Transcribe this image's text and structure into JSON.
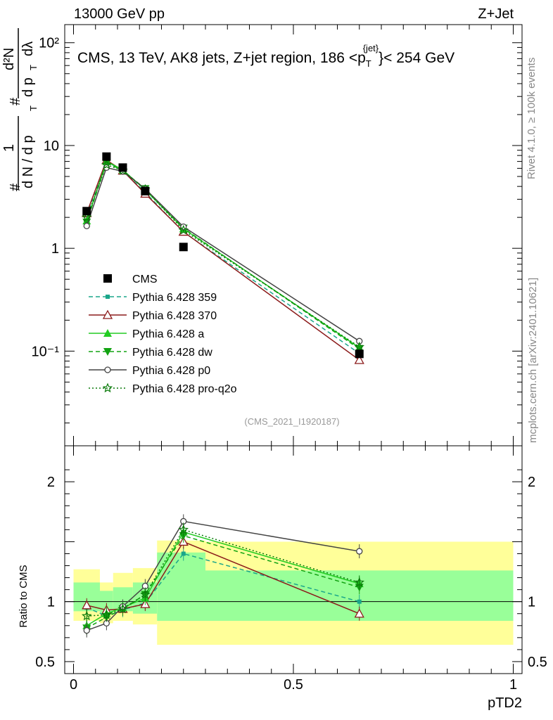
{
  "header": {
    "left": "13000 GeV pp",
    "right": "Z+Jet"
  },
  "side_labels": {
    "rivet": "Rivet 4.1.0, ≥ 100k events",
    "mcplots": "mcplots.cern.ch [arXiv:2401.10621]"
  },
  "chart_data": [
    {
      "name": "main",
      "type": "line",
      "yscale": "log",
      "title": "CMS, 13 TeV, AK8 jets, Z+jet region, 186 <p_T^{jet}< 254 GeV",
      "title_parts": {
        "a": "CMS, 13 TeV, AK8 jets, Z+jet region, 186 <p",
        "sub": "T",
        "sup": "{jet}",
        "b": "}< 254 GeV"
      },
      "ylabel_parts": [
        "#",
        "1",
        "d N / d p",
        "T",
        "#",
        "d p",
        "T",
        "dλ",
        "d²N"
      ],
      "xlim": [
        -0.02,
        1.02
      ],
      "ylim": [
        0.012,
        150
      ],
      "y_ticks": [
        {
          "value": 0.1,
          "label": "10⁻¹"
        },
        {
          "value": 1,
          "label": "1"
        },
        {
          "value": 10,
          "label": "10"
        },
        {
          "value": 100,
          "label": "10²"
        }
      ],
      "watermark": "(CMS_2021_I1920187)",
      "x": [
        0.03,
        0.075,
        0.112,
        0.163,
        0.25,
        0.65
      ],
      "series": [
        {
          "name": "CMS",
          "color": "#000000",
          "marker": "square",
          "dash": "none",
          "values": [
            2.3,
            7.8,
            6.1,
            3.6,
            1.03,
            0.094
          ]
        },
        {
          "name": "Pythia 6.428 359",
          "color": "#1aa68a",
          "marker": "smallsquare",
          "dash": "dashed",
          "values": [
            2.1,
            7.0,
            5.7,
            3.5,
            1.44,
            0.095
          ]
        },
        {
          "name": "Pythia 6.428 370",
          "color": "#8b1a1a",
          "marker": "opentriangle",
          "dash": "solid",
          "values": [
            2.2,
            7.2,
            5.7,
            3.4,
            1.45,
            0.082
          ]
        },
        {
          "name": "Pythia 6.428 a",
          "color": "#22cc22",
          "marker": "triangle",
          "dash": "solid",
          "values": [
            1.85,
            7.0,
            5.8,
            3.7,
            1.55,
            0.108
          ]
        },
        {
          "name": "Pythia 6.428 dw",
          "color": "#12a312",
          "marker": "invtriangle",
          "dash": "dashed",
          "values": [
            1.8,
            6.8,
            5.7,
            3.8,
            1.57,
            0.105
          ]
        },
        {
          "name": "Pythia 6.428 p0",
          "color": "#444444",
          "marker": "opencircle",
          "dash": "solid",
          "values": [
            1.65,
            6.1,
            5.6,
            3.8,
            1.62,
            0.125
          ]
        },
        {
          "name": "Pythia 6.428 pro-q2o",
          "color": "#0a7a0a",
          "marker": "star",
          "dash": "dotted",
          "values": [
            2.0,
            6.5,
            5.7,
            3.75,
            1.5,
            0.11
          ]
        }
      ]
    },
    {
      "name": "ratio",
      "type": "line",
      "ylabel": "Ratio to CMS",
      "xlabel": "pTD2",
      "xlim": [
        -0.02,
        1.02
      ],
      "ylim": [
        0.4,
        2.3
      ],
      "y_ticks": [
        {
          "value": 0.5,
          "label": "0.5"
        },
        {
          "value": 1,
          "label": "1"
        },
        {
          "value": 2,
          "label": "2"
        }
      ],
      "x_ticks": [
        {
          "value": 0,
          "label": "0"
        },
        {
          "value": 0.5,
          "label": "0.5"
        },
        {
          "value": 1,
          "label": "1"
        }
      ],
      "bands": [
        {
          "x0": 0.0,
          "x1": 0.06,
          "inner": [
            0.92,
            1.16
          ],
          "outer": [
            0.84,
            1.27
          ]
        },
        {
          "x0": 0.06,
          "x1": 0.09,
          "inner": [
            0.9,
            1.09
          ],
          "outer": [
            0.82,
            1.16
          ]
        },
        {
          "x0": 0.09,
          "x1": 0.135,
          "inner": [
            0.92,
            1.12
          ],
          "outer": [
            0.84,
            1.24
          ]
        },
        {
          "x0": 0.135,
          "x1": 0.19,
          "inner": [
            0.9,
            1.16
          ],
          "outer": [
            0.81,
            1.28
          ]
        },
        {
          "x0": 0.19,
          "x1": 0.3,
          "inner": [
            0.84,
            1.41
          ],
          "outer": [
            0.64,
            1.51
          ]
        },
        {
          "x0": 0.3,
          "x1": 1.0,
          "inner": [
            0.84,
            1.26
          ],
          "outer": [
            0.64,
            1.5
          ]
        }
      ],
      "band_colors": {
        "inner": "#99ff99",
        "outer": "#ffff99"
      },
      "x": [
        0.03,
        0.075,
        0.112,
        0.163,
        0.25,
        0.65
      ],
      "series": [
        {
          "name": "Pythia 6.428 359",
          "color": "#1aa68a",
          "marker": "smallsquare",
          "dash": "dashed",
          "values": [
            0.95,
            0.88,
            0.93,
            0.99,
            1.4,
            1.0
          ]
        },
        {
          "name": "Pythia 6.428 370",
          "color": "#8b1a1a",
          "marker": "opentriangle",
          "dash": "solid",
          "values": [
            0.97,
            0.93,
            0.94,
            0.98,
            1.5,
            0.9
          ]
        },
        {
          "name": "Pythia 6.428 a",
          "color": "#22cc22",
          "marker": "triangle",
          "dash": "solid",
          "values": [
            0.8,
            0.9,
            0.95,
            1.03,
            1.58,
            1.15
          ]
        },
        {
          "name": "Pythia 6.428 dw",
          "color": "#12a312",
          "marker": "invtriangle",
          "dash": "dashed",
          "values": [
            0.78,
            0.87,
            0.94,
            1.06,
            1.55,
            1.12
          ]
        },
        {
          "name": "Pythia 6.428 p0",
          "color": "#444444",
          "marker": "opencircle",
          "dash": "solid",
          "values": [
            0.76,
            0.82,
            0.96,
            1.13,
            1.67,
            1.42
          ]
        },
        {
          "name": "Pythia 6.428 pro-q2o",
          "color": "#0a7a0a",
          "marker": "star",
          "dash": "dotted",
          "values": [
            0.88,
            0.89,
            0.94,
            1.06,
            1.6,
            1.16
          ]
        }
      ]
    }
  ]
}
